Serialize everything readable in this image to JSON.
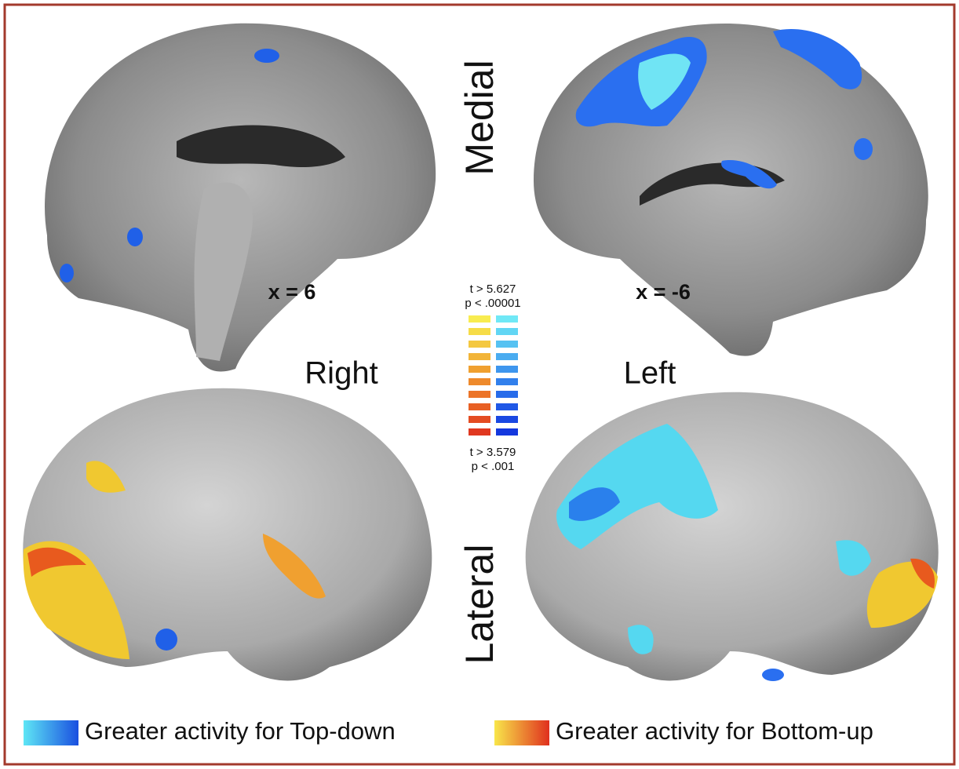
{
  "labels": {
    "medial": "Medial",
    "lateral": "Lateral",
    "right": "Right",
    "left": "Left"
  },
  "slices": {
    "right": "x = 6",
    "left": "x = -6"
  },
  "colorbar": {
    "max_t": "t > 5.627",
    "max_p": "p < .00001",
    "min_t": "t > 3.579",
    "min_p": "p < .001"
  },
  "legend": [
    {
      "label": "Greater activity for Top-down"
    },
    {
      "label": "Greater activity for Bottom-up"
    }
  ]
}
